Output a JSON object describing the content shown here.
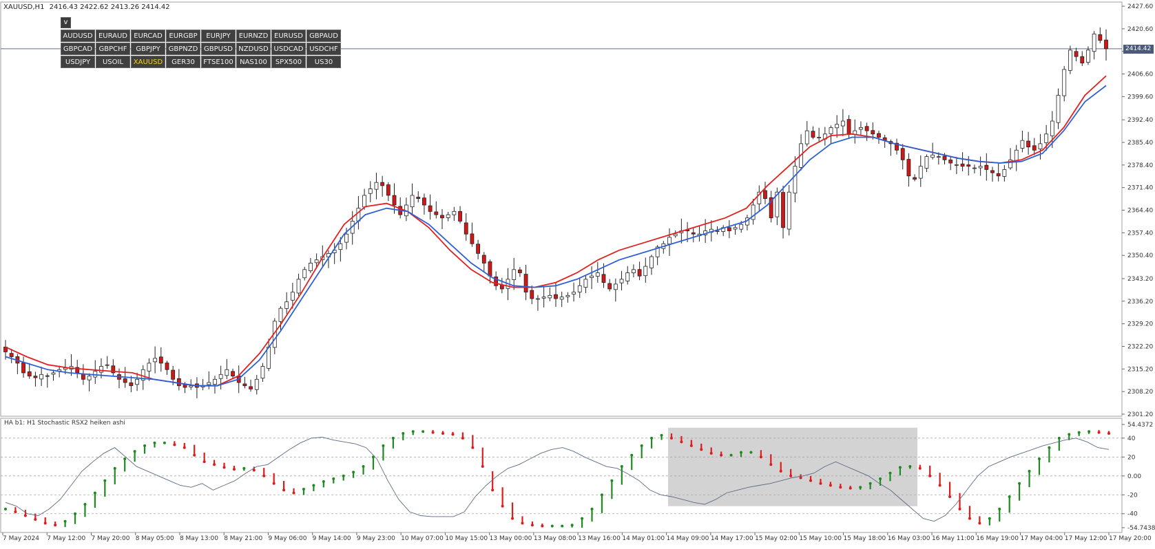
{
  "header": {
    "symbol_tf": "XAUUSD,H1",
    "ohlc": "2416.43 2422.62 2413.26 2414.42"
  },
  "panel": {
    "toggle_label": "v",
    "symbols": [
      "AUDUSD",
      "EURAUD",
      "EURCAD",
      "EURGBP",
      "EURJPY",
      "EURNZD",
      "EURUSD",
      "GBPAUD",
      "GBPCAD",
      "GBPCHF",
      "GBPJPY",
      "GBPNZD",
      "GBPUSD",
      "NZDUSD",
      "USDCAD",
      "USDCHF",
      "USDJPY",
      "USOIL",
      "XAUUSD",
      "GER30",
      "FTSE100",
      "NAS100",
      "SPX500",
      "US30"
    ],
    "active_symbol": "XAUUSD"
  },
  "indicator": {
    "title": "HA b1: H1 Stochastic RSX2 heiken ashi"
  },
  "price_axis": {
    "labels": [
      "2427.60",
      "2420.60",
      "2413.60",
      "2406.60",
      "2399.60",
      "2392.40",
      "2385.40",
      "2378.40",
      "2371.40",
      "2364.40",
      "2357.40",
      "2350.40",
      "2343.20",
      "2336.20",
      "2329.20",
      "2322.20",
      "2315.20",
      "2308.20",
      "2301.20"
    ],
    "current_price": "2414.42"
  },
  "indicator_axis": {
    "labels": [
      "54.4372",
      "40",
      "20",
      "0.00",
      "-20",
      "-40",
      "-54.7438"
    ]
  },
  "time_axis": {
    "labels": [
      "7 May 2024",
      "7 May 12:00",
      "7 May 20:00",
      "8 May 05:00",
      "8 May 13:00",
      "8 May 21:00",
      "9 May 06:00",
      "9 May 14:00",
      "9 May 23:00",
      "10 May 07:00",
      "10 May 15:00",
      "13 May 00:00",
      "13 May 08:00",
      "13 May 16:00",
      "14 May 01:00",
      "14 May 09:00",
      "14 May 17:00",
      "15 May 02:00",
      "15 May 10:00",
      "15 May 18:00",
      "16 May 03:00",
      "16 May 11:00",
      "16 May 19:00",
      "17 May 04:00",
      "17 May 12:00",
      "17 May 20:00"
    ]
  },
  "chart_data": {
    "type": "candlestick",
    "symbol": "XAUUSD",
    "timeframe": "H1",
    "close_path": [
      2320.5,
      2319.0,
      2317.0,
      2314.0,
      2313.0,
      2312.5,
      2313.5,
      2313.0,
      2314.0,
      2315.0,
      2315.5,
      2316.0,
      2314.0,
      2312.0,
      2313.0,
      2314.5,
      2316.0,
      2316.5,
      2314.0,
      2312.0,
      2311.0,
      2310.0,
      2312.0,
      2315.0,
      2317.0,
      2318.5,
      2317.0,
      2315.0,
      2312.0,
      2310.0,
      2309.5,
      2310.0,
      2309.5,
      2310.0,
      2311.0,
      2312.0,
      2313.5,
      2315.0,
      2313.0,
      2311.0,
      2310.0,
      2309.0,
      2312.0,
      2316.0,
      2322.0,
      2330.0,
      2334.0,
      2336.0,
      2339.0,
      2343.0,
      2346.0,
      2348.0,
      2349.0,
      2350.0,
      2351.0,
      2352.0,
      2354.0,
      2357.0,
      2361.0,
      2365.0,
      2369.0,
      2371.0,
      2373.0,
      2372.0,
      2369.0,
      2366.0,
      2363.0,
      2366.0,
      2369.0,
      2368.0,
      2366.0,
      2364.0,
      2363.0,
      2362.0,
      2363.0,
      2364.0,
      2361.0,
      2357.0,
      2354.0,
      2351.0,
      2348.0,
      2344.0,
      2341.0,
      2340.0,
      2343.0,
      2346.0,
      2345.0,
      2339.0,
      2337.0,
      2337.0,
      2337.5,
      2338.0,
      2337.0,
      2337.5,
      2338.0,
      2339.0,
      2341.0,
      2343.0,
      2344.0,
      2345.0,
      2342.0,
      2340.0,
      2341.5,
      2343.0,
      2345.0,
      2346.0,
      2344.0,
      2347.0,
      2350.0,
      2353.0,
      2354.0,
      2356.0,
      2357.0,
      2358.0,
      2358.0,
      2357.0,
      2357.0,
      2358.0,
      2358.5,
      2358.0,
      2359.0,
      2358.0,
      2359.0,
      2360.0,
      2362.0,
      2366.0,
      2370.0,
      2368.0,
      2362.0,
      2370.0,
      2359.0,
      2370.0,
      2378.0,
      2385.0,
      2389.0,
      2387.0,
      2387.0,
      2388.0,
      2390.0,
      2391.0,
      2392.0,
      2388.0,
      2389.0,
      2390.0,
      2389.0,
      2388.0,
      2387.0,
      2386.0,
      2385.0,
      2383.0,
      2380.0,
      2375.0,
      2374.0,
      2378.0,
      2381.0,
      2381.5,
      2381.0,
      2380.0,
      2379.0,
      2378.5,
      2378.0,
      2378.0,
      2377.5,
      2378.0,
      2377.0,
      2376.0,
      2375.0,
      2377.0,
      2380.0,
      2383.0,
      2386.0,
      2384.0,
      2383.0,
      2385.0,
      2388.0,
      2392.0,
      2400.0,
      2408.0,
      2414.0,
      2412.0,
      2410.0,
      2414.0,
      2419.0,
      2417.0,
      2414.42
    ],
    "ma_red_path": [
      2322.0,
      2319.0,
      2316.5,
      2315.5,
      2315.0,
      2314.5,
      2314.0,
      2312.0,
      2311.0,
      2310.0,
      2310.0,
      2313.0,
      2320.0,
      2329.0,
      2339.0,
      2350.0,
      2360.0,
      2365.5,
      2366.5,
      2364.0,
      2359.0,
      2352.0,
      2346.0,
      2342.0,
      2340.5,
      2340.5,
      2342.0,
      2345.0,
      2349.0,
      2352.0,
      2354.0,
      2356.0,
      2358.0,
      2360.0,
      2362.0,
      2365.0,
      2372.0,
      2378.0,
      2384.0,
      2387.5,
      2388.0,
      2387.0,
      2385.0,
      2383.5,
      2382.0,
      2380.5,
      2379.5,
      2379.0,
      2380.0,
      2383.0,
      2390.0,
      2400.0,
      2406.0
    ],
    "ma_blue_path": [
      2319.0,
      2317.0,
      2315.0,
      2314.0,
      2313.5,
      2313.0,
      2312.5,
      2312.0,
      2311.0,
      2310.0,
      2310.0,
      2312.0,
      2318.0,
      2327.0,
      2337.0,
      2347.0,
      2357.0,
      2363.0,
      2365.0,
      2364.0,
      2360.0,
      2354.0,
      2348.0,
      2343.5,
      2341.0,
      2340.5,
      2341.0,
      2343.0,
      2346.0,
      2349.0,
      2351.0,
      2353.0,
      2355.0,
      2357.0,
      2359.0,
      2361.0,
      2366.0,
      2373.0,
      2380.0,
      2385.0,
      2387.0,
      2387.0,
      2385.0,
      2383.5,
      2382.0,
      2380.5,
      2379.5,
      2379.0,
      2379.5,
      2382.0,
      2389.0,
      2398.0,
      2403.0
    ],
    "osc_dots": [
      -35,
      -38,
      -42,
      -46,
      -50,
      -52,
      -48,
      -40,
      -30,
      -18,
      -5,
      8,
      18,
      26,
      32,
      35,
      35,
      33,
      30,
      22,
      15,
      12,
      9,
      7,
      8,
      6,
      0,
      -8,
      -15,
      -18,
      -14,
      -10,
      -6,
      -3,
      0,
      4,
      10,
      20,
      32,
      40,
      45,
      47,
      47,
      46,
      45,
      44,
      40,
      30,
      10,
      -15,
      -32,
      -45,
      -50,
      -52,
      -53,
      -53,
      -53,
      -52,
      -45,
      -35,
      -20,
      -5,
      10,
      22,
      32,
      40,
      43,
      40,
      36,
      32,
      28,
      24,
      22,
      22,
      25,
      25,
      20,
      12,
      5,
      0,
      -2,
      -5,
      -8,
      -10,
      -12,
      -13,
      -12,
      -8,
      -3,
      3,
      9,
      10,
      8,
      0,
      -10,
      -22,
      -35,
      -45,
      -50,
      -45,
      -35,
      -22,
      -8,
      5,
      18,
      30,
      40,
      44,
      46,
      47,
      46,
      45
    ],
    "osc_line": [
      -28,
      -32,
      -40,
      -42,
      -35,
      -25,
      -10,
      5,
      15,
      24,
      30,
      20,
      10,
      5,
      0,
      -5,
      -10,
      -12,
      -8,
      -15,
      -10,
      -5,
      3,
      10,
      12,
      20,
      28,
      35,
      40,
      41,
      38,
      36,
      34,
      30,
      18,
      -5,
      -25,
      -38,
      -42,
      -43,
      -43,
      -43,
      -38,
      -22,
      -10,
      0,
      8,
      12,
      18,
      24,
      28,
      30,
      26,
      20,
      15,
      10,
      8,
      2,
      -5,
      -15,
      -20,
      -22,
      -25,
      -28,
      -30,
      -25,
      -18,
      -15,
      -12,
      -10,
      -8,
      -5,
      -2,
      0,
      3,
      10,
      15,
      10,
      5,
      0,
      -8,
      -15,
      -25,
      -35,
      -45,
      -48,
      -42,
      -30,
      -15,
      0,
      10,
      15,
      20,
      24,
      28,
      32,
      35,
      38,
      40,
      36,
      30,
      28
    ]
  }
}
